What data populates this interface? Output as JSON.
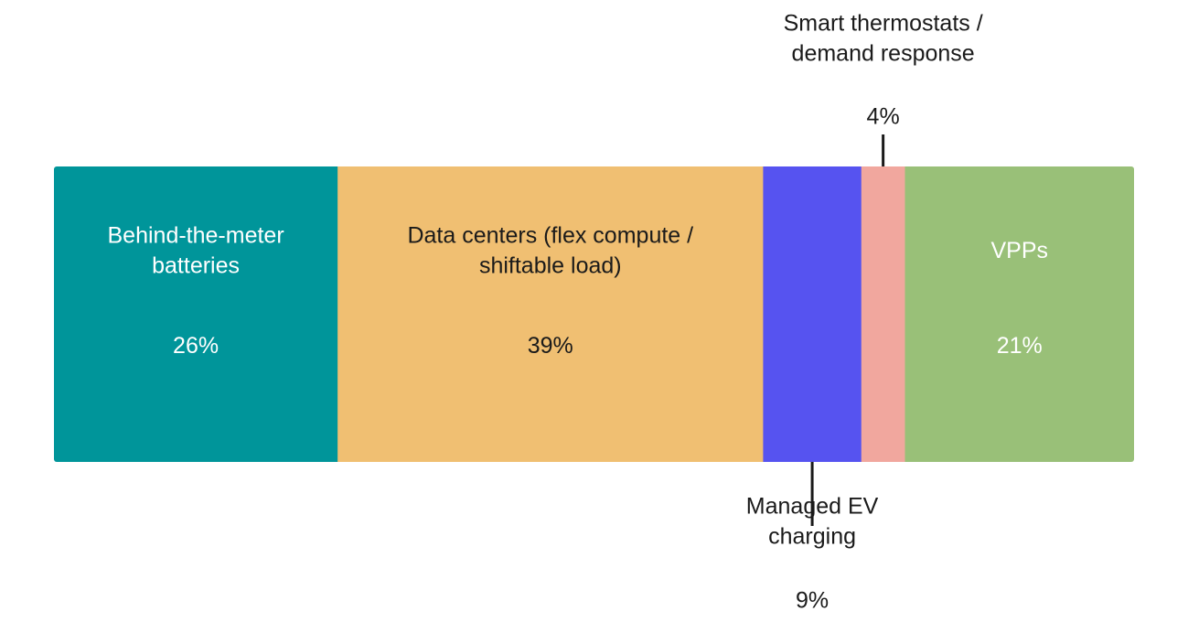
{
  "chart_data": {
    "type": "stacked-bar",
    "orientation": "horizontal",
    "unit": "%",
    "segments": [
      {
        "name": "Behind-the-meter batteries",
        "label_lines": [
          "Behind-the-meter",
          "batteries"
        ],
        "value": 26,
        "value_label": "26%",
        "color": "#00959a",
        "text_color": "#ffffff",
        "label_position": "inside"
      },
      {
        "name": "Data centers (flex compute / shiftable load)",
        "label_lines": [
          "Data centers (flex compute /",
          "shiftable load)"
        ],
        "value": 39,
        "value_label": "39%",
        "color": "#f0bf72",
        "text_color": "#1a1a1a",
        "label_position": "inside"
      },
      {
        "name": "Managed EV charging",
        "label_lines": [
          "Managed EV",
          "charging"
        ],
        "value": 9,
        "value_label": "9%",
        "color": "#5653f0",
        "text_color": "#1a1a1a",
        "label_position": "below"
      },
      {
        "name": "Smart thermostats / demand response",
        "label_lines": [
          "Smart thermostats /",
          "demand response"
        ],
        "value": 4,
        "value_label": "4%",
        "color": "#f1a79e",
        "text_color": "#1a1a1a",
        "label_position": "above"
      },
      {
        "name": "VPPs",
        "label_lines": [
          "VPPs"
        ],
        "value": 21,
        "value_label": "21%",
        "color": "#99c078",
        "text_color": "#ffffff",
        "label_position": "inside"
      }
    ]
  }
}
